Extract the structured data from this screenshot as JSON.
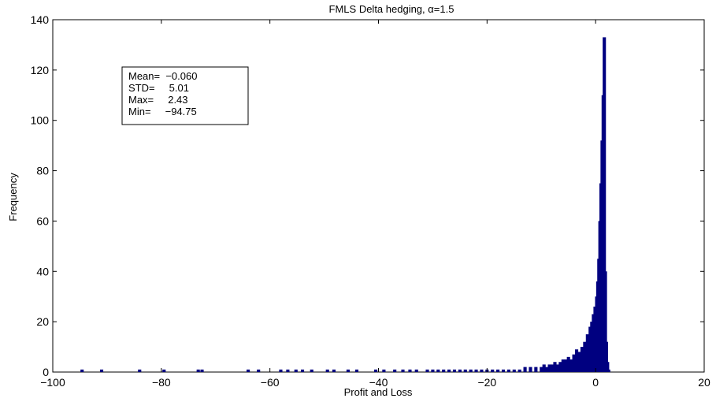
{
  "chart_data": {
    "type": "bar",
    "title": "FMLS Delta hedging, α=1.5",
    "xlabel": "Profit and Loss",
    "ylabel": "Frequency",
    "xlim": [
      -100,
      20
    ],
    "ylim": [
      0,
      140
    ],
    "xticks": [
      -100,
      -80,
      -60,
      -40,
      -20,
      0,
      20
    ],
    "yticks": [
      0,
      20,
      40,
      60,
      80,
      100,
      120,
      140
    ],
    "xtick_labels": [
      "−100",
      "−80",
      "−60",
      "−40",
      "−20",
      "0",
      "20"
    ],
    "ytick_labels": [
      "0",
      "20",
      "40",
      "60",
      "80",
      "100",
      "120",
      "140"
    ],
    "bar_color": "#000080",
    "bins": {
      "x": [
        -94.6,
        -91.0,
        -84.0,
        -79.5,
        -73.2,
        -72.5,
        -64.0,
        -62.1,
        -58.0,
        -56.7,
        -55.2,
        -54.0,
        -52.3,
        -49.4,
        -48.2,
        -45.6,
        -44.0,
        -40.5,
        -39.0,
        -37.0,
        -35.5,
        -34.2,
        -33.0,
        -31.0,
        -30.0,
        -29.0,
        -28.0,
        -27.0,
        -26.0,
        -25.0,
        -24.0,
        -23.0,
        -22.0,
        -21.0,
        -20.0,
        -19.0,
        -18.0,
        -17.0,
        -16.0,
        -15.0,
        -14.0,
        -13.0,
        -12.0,
        -11.0,
        -10.0,
        -9.5,
        -9.0,
        -8.5,
        -8.0,
        -7.5,
        -7.0,
        -6.5,
        -6.0,
        -5.5,
        -5.0,
        -4.5,
        -4.0,
        -3.5,
        -3.0,
        -2.5,
        -2.0,
        -1.5,
        -1.0,
        -0.7,
        -0.4,
        -0.1,
        0.2,
        0.4,
        0.6,
        0.8,
        1.0,
        1.2,
        1.4,
        1.6,
        1.8,
        2.0,
        2.2,
        2.4
      ],
      "y": [
        1,
        1,
        1,
        1,
        1,
        1,
        1,
        1,
        1,
        1,
        1,
        1,
        1,
        1,
        1,
        1,
        1,
        1,
        1,
        1,
        1,
        1,
        1,
        1,
        1,
        1,
        1,
        1,
        1,
        1,
        1,
        1,
        1,
        1,
        1,
        1,
        1,
        1,
        1,
        1,
        1,
        2,
        2,
        2,
        2,
        3,
        2,
        3,
        3,
        4,
        3,
        4,
        5,
        5,
        6,
        5,
        7,
        9,
        8,
        10,
        12,
        15,
        18,
        20,
        23,
        26,
        30,
        36,
        45,
        60,
        75,
        92,
        110,
        133,
        40,
        12,
        4,
        1
      ]
    },
    "stats_box": {
      "lines": [
        "Mean=  −0.060",
        "STD=     5.01",
        "Max=     2.43",
        "Min=     −94.75"
      ]
    }
  }
}
